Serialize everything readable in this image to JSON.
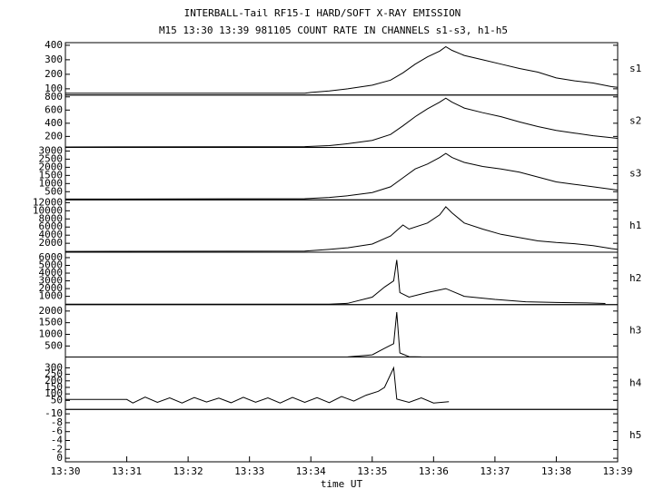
{
  "chart_data": [
    {
      "type": "line",
      "title": "INTERBALL-Tail RF15-I HARD/SOFT X-RAY EMISSION",
      "subtitle": "M15  13:30 13:39 981105  COUNT RATE IN CHANNELS s1-s3, h1-h5",
      "label": "s1",
      "xlim": [
        810,
        819
      ],
      "ylim": [
        57,
        418
      ],
      "yticks": [
        100,
        200,
        300,
        400
      ],
      "x": [
        810,
        813.9,
        814,
        814.3,
        814.6,
        815,
        815.3,
        815.5,
        815.7,
        815.9,
        816.1,
        816.2,
        816.3,
        816.5,
        816.8,
        817.1,
        817.4,
        817.7,
        818,
        818.3,
        818.6,
        818.9,
        819
      ],
      "values": [
        70,
        70,
        75,
        85,
        100,
        125,
        160,
        210,
        270,
        320,
        360,
        390,
        365,
        330,
        300,
        270,
        240,
        215,
        175,
        155,
        140,
        115,
        110
      ]
    },
    {
      "type": "line",
      "label": "s2",
      "xlim": [
        810,
        819
      ],
      "ylim": [
        33,
        828
      ],
      "yticks": [
        200,
        400,
        600,
        800
      ],
      "x": [
        810,
        813.9,
        814.3,
        814.6,
        815,
        815.3,
        815.5,
        815.7,
        815.9,
        816.1,
        816.2,
        816.3,
        816.5,
        816.8,
        817.1,
        817.4,
        817.7,
        818,
        818.3,
        818.6,
        818.9,
        819
      ],
      "values": [
        40,
        45,
        60,
        90,
        140,
        230,
        360,
        500,
        620,
        720,
        780,
        720,
        630,
        560,
        500,
        420,
        350,
        290,
        250,
        210,
        180,
        170
      ]
    },
    {
      "type": "line",
      "label": "s3",
      "xlim": [
        810,
        819
      ],
      "ylim": [
        0,
        3220
      ],
      "yticks": [
        500,
        1000,
        1500,
        2000,
        2500,
        3000
      ],
      "x": [
        810,
        813.9,
        814.3,
        814.6,
        815,
        815.3,
        815.5,
        815.7,
        815.9,
        816.1,
        816.2,
        816.3,
        816.5,
        816.8,
        817.1,
        817.4,
        817.7,
        818,
        818.3,
        818.6,
        818.9,
        819
      ],
      "values": [
        50,
        70,
        150,
        250,
        450,
        800,
        1350,
        1900,
        2200,
        2600,
        2850,
        2600,
        2300,
        2050,
        1900,
        1700,
        1400,
        1100,
        950,
        800,
        650,
        600
      ]
    },
    {
      "type": "line",
      "label": "h1",
      "xlim": [
        810,
        819
      ],
      "ylim": [
        -200,
        12700
      ],
      "yticks": [
        2000,
        4000,
        6000,
        8000,
        10000,
        12000
      ],
      "x": [
        810,
        813.9,
        814.3,
        814.6,
        815,
        815.3,
        815.5,
        815.6,
        815.9,
        816.1,
        816.2,
        816.3,
        816.5,
        816.8,
        817.1,
        817.4,
        817.7,
        818,
        818.3,
        818.6,
        818.9,
        819
      ],
      "values": [
        0,
        100,
        500,
        900,
        1800,
        3800,
        6500,
        5500,
        7000,
        9000,
        11000,
        9500,
        7000,
        5500,
        4200,
        3400,
        2600,
        2200,
        1900,
        1400,
        700,
        500
      ]
    },
    {
      "type": "line",
      "label": "h2",
      "xlim": [
        810,
        819
      ],
      "ylim": [
        -70,
        6700
      ],
      "yticks": [
        1000,
        2000,
        3000,
        4000,
        5000,
        6000
      ],
      "x": [
        810,
        814.3,
        814.6,
        815,
        815.2,
        815.35,
        815.4,
        815.45,
        815.6,
        815.9,
        816.2,
        816.5,
        817,
        817.5,
        818,
        818.5,
        818.8
      ],
      "values": [
        0,
        0,
        100,
        900,
        2200,
        3000,
        5700,
        1500,
        900,
        1500,
        2000,
        1000,
        600,
        300,
        200,
        150,
        80
      ]
    },
    {
      "type": "line",
      "label": "h3",
      "xlim": [
        810,
        819
      ],
      "ylim": [
        26,
        2276
      ],
      "yticks": [
        500,
        1000,
        1500,
        2000
      ],
      "x": [
        814.6,
        815,
        815.2,
        815.35,
        815.4,
        815.45,
        815.6,
        815.8
      ],
      "values": [
        30,
        120,
        400,
        600,
        1950,
        200,
        40,
        30
      ]
    },
    {
      "type": "line",
      "label": "h4",
      "xlim": [
        810,
        819
      ],
      "ylim": [
        -19,
        383
      ],
      "yticks": [
        50,
        100,
        150,
        200,
        250,
        300
      ],
      "x": [
        810,
        811,
        811.1,
        811.3,
        811.5,
        811.7,
        811.9,
        812.1,
        812.3,
        812.5,
        812.7,
        812.9,
        813.1,
        813.3,
        813.5,
        813.7,
        813.9,
        814.1,
        814.3,
        814.5,
        814.7,
        814.9,
        815.1,
        815.2,
        815.35,
        815.4,
        815.6,
        815.8,
        816,
        816.25
      ],
      "values": [
        57,
        57,
        30,
        75,
        35,
        70,
        30,
        72,
        38,
        68,
        32,
        74,
        36,
        70,
        30,
        73,
        35,
        71,
        33,
        80,
        45,
        90,
        120,
        150,
        300,
        60,
        35,
        70,
        30,
        40
      ]
    },
    {
      "type": "line",
      "label": "h5",
      "xlim": [
        810,
        819
      ],
      "ylim": [
        0.8,
        -11
      ],
      "yticks": [
        -10,
        -8,
        -6,
        -4,
        -2,
        0
      ],
      "x_label": "time UT",
      "xticks": [
        {
          "value": 810,
          "label": "13:30"
        },
        {
          "value": 811,
          "label": "13:31"
        },
        {
          "value": 812,
          "label": "13:32"
        },
        {
          "value": 813,
          "label": "13:33"
        },
        {
          "value": 814,
          "label": "13:34"
        },
        {
          "value": 815,
          "label": "13:35"
        },
        {
          "value": 816,
          "label": "13:36"
        },
        {
          "value": 817,
          "label": "13:37"
        },
        {
          "value": 818,
          "label": "13:38"
        },
        {
          "value": 819,
          "label": "13:39"
        }
      ],
      "x": [],
      "values": []
    }
  ]
}
